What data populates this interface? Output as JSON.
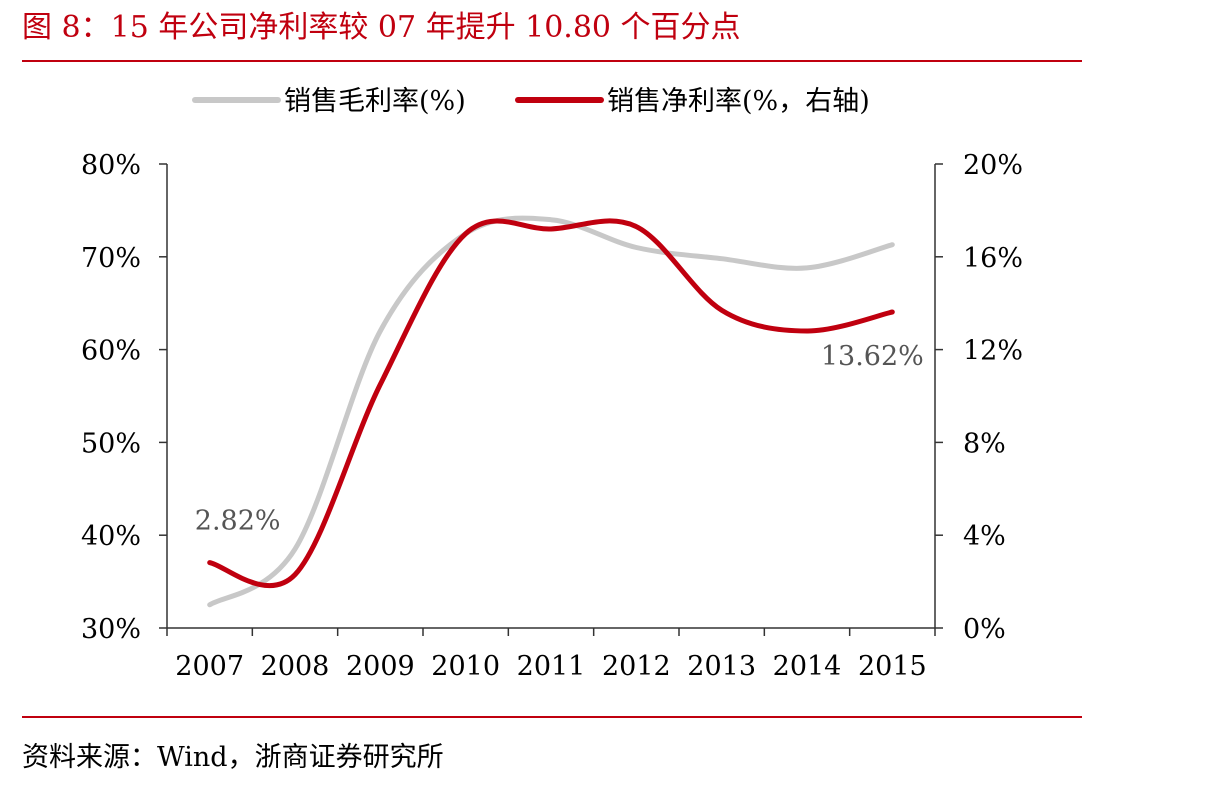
{
  "title": "图 8：15 年公司净利率较 07 年提升 10.80 个百分点",
  "source": "资料来源：Wind，浙商证券研究所",
  "colors": {
    "accent": "#c0000f",
    "gross_series": "#c8c8c8",
    "net_series": "#c0000f"
  },
  "chart_data": {
    "type": "line",
    "x": [
      "2007",
      "2008",
      "2009",
      "2010",
      "2011",
      "2012",
      "2013",
      "2014",
      "2015"
    ],
    "series": [
      {
        "name": "销售毛利率(%)",
        "axis": "left",
        "values": [
          32.5,
          38.5,
          62.0,
          72.5,
          74.0,
          71.0,
          69.8,
          68.8,
          71.3
        ]
      },
      {
        "name": "销售净利率(%，右轴)",
        "axis": "right",
        "values": [
          2.82,
          2.3,
          10.5,
          17.0,
          17.2,
          17.3,
          13.7,
          12.8,
          13.62
        ]
      }
    ],
    "left_axis": {
      "ylim": [
        30,
        80
      ],
      "ticks": [
        "30%",
        "40%",
        "50%",
        "60%",
        "70%",
        "80%"
      ]
    },
    "right_axis": {
      "ylim": [
        0,
        20
      ],
      "ticks": [
        "0%",
        "4%",
        "8%",
        "12%",
        "16%",
        "20%"
      ]
    },
    "annotations": [
      "2.82%",
      "13.62%"
    ],
    "legend_position": "top-center",
    "grid": false
  }
}
